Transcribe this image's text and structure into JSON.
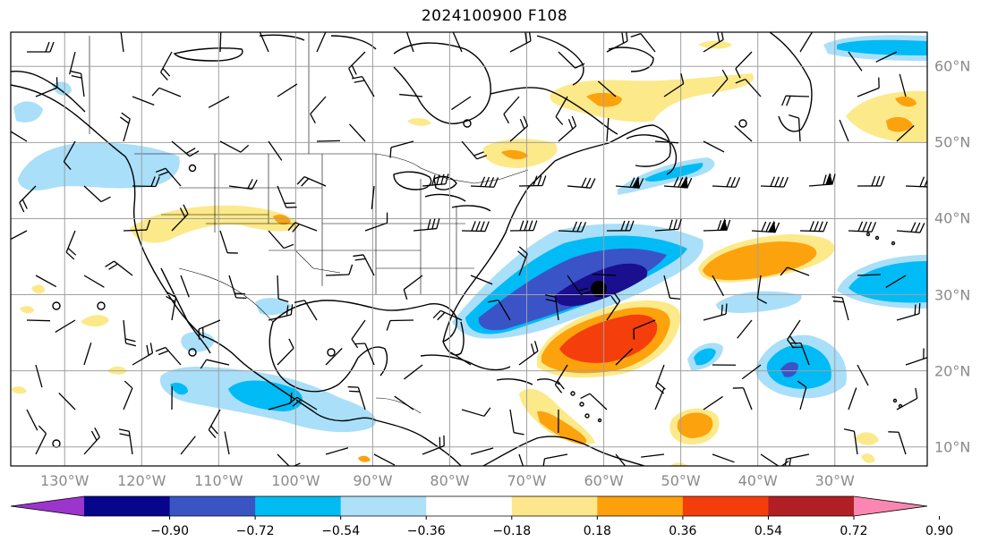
{
  "title": "2024100900 F108",
  "map": {
    "projection": "cylindrical",
    "extent": {
      "lon": [
        -137,
        -18
      ],
      "lat": [
        7.5,
        64.5
      ]
    },
    "lon_ticks": [
      {
        "label": "130°W",
        "lon": -130
      },
      {
        "label": "120°W",
        "lon": -120
      },
      {
        "label": "110°W",
        "lon": -110
      },
      {
        "label": "100°W",
        "lon": -100
      },
      {
        "label": "90°W",
        "lon": -90
      },
      {
        "label": "80°W",
        "lon": -80
      },
      {
        "label": "70°W",
        "lon": -70
      },
      {
        "label": "60°W",
        "lon": -60
      },
      {
        "label": "50°W",
        "lon": -50
      },
      {
        "label": "40°W",
        "lon": -40
      },
      {
        "label": "30°W",
        "lon": -30
      }
    ],
    "lat_ticks": [
      {
        "label": "60°N",
        "lat": 60
      },
      {
        "label": "50°N",
        "lat": 50
      },
      {
        "label": "40°N",
        "lat": 40
      },
      {
        "label": "30°N",
        "lat": 30
      },
      {
        "label": "20°N",
        "lat": 20
      },
      {
        "label": "10°N",
        "lat": 10
      }
    ],
    "gridlines": true,
    "storm_center": {
      "lon": -63.5,
      "lat": 31.5
    },
    "fill_colors": {
      "neg": [
        "#1a0f8f",
        "#3a54c8",
        "#00bbf5",
        "#a9dff8"
      ],
      "pos": [
        "#fce98a",
        "#fca20d",
        "#f43e0b"
      ]
    }
  },
  "colorbar": {
    "colors": [
      "#9b35cc",
      "#06058c",
      "#3955c4",
      "#00bcf2",
      "#aee0f8",
      "#ffffff",
      "#fde68b",
      "#fca10b",
      "#f43d0b",
      "#b11f24",
      "#fb86b2"
    ],
    "ticks": [
      "−0.90",
      "−0.72",
      "−0.54",
      "−0.36",
      "−0.18",
      "0.18",
      "0.36",
      "0.54",
      "0.72",
      "0.90"
    ],
    "extend": "both"
  }
}
